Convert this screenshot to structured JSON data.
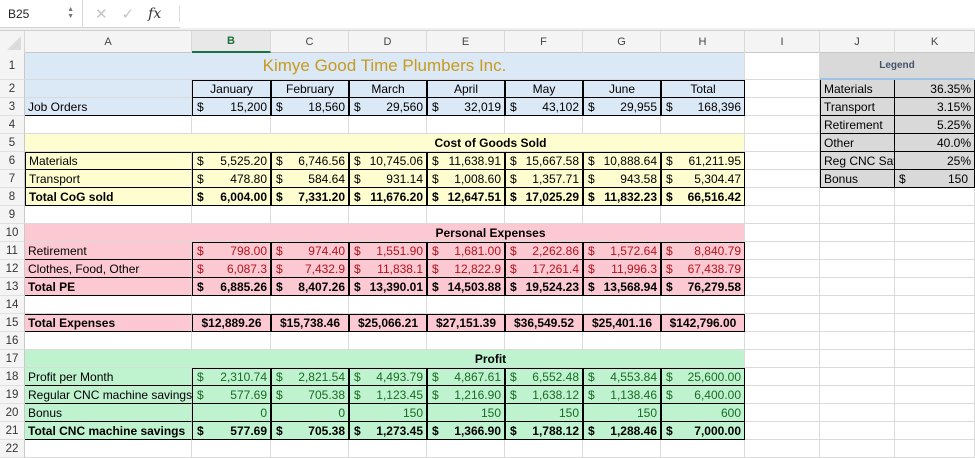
{
  "formula_bar": {
    "name_box": "B25",
    "cancel_icon": "✕",
    "enter_icon": "✓",
    "fx_label": "fx",
    "formula": ""
  },
  "columns": [
    "A",
    "B",
    "C",
    "D",
    "E",
    "F",
    "G",
    "H",
    "I",
    "J",
    "K"
  ],
  "selected_column": "B",
  "rows": [
    "1",
    "2",
    "3",
    "4",
    "5",
    "6",
    "7",
    "8",
    "9",
    "10",
    "11",
    "12",
    "13",
    "14",
    "15",
    "16",
    "17",
    "18",
    "19",
    "20",
    "21",
    "22"
  ],
  "title": "Kimye Good Time Plumbers Inc.",
  "months": [
    "January",
    "February",
    "March",
    "April",
    "May",
    "June",
    "Total"
  ],
  "job_orders": {
    "label": "Job Orders",
    "values": [
      "15,200",
      "18,560",
      "29,560",
      "32,019",
      "43,102",
      "29,955",
      "168,396"
    ]
  },
  "cogs": {
    "header": "Cost of Goods Sold",
    "rows": [
      {
        "label": "Materials",
        "bold": false,
        "values": [
          "5,525.20",
          "6,746.56",
          "10,745.06",
          "11,638.91",
          "15,667.58",
          "10,888.64",
          "61,211.95"
        ]
      },
      {
        "label": "Transport",
        "bold": false,
        "values": [
          "478.80",
          "584.64",
          "931.14",
          "1,008.60",
          "1,357.71",
          "943.58",
          "5,304.47"
        ]
      },
      {
        "label": "Total CoG sold",
        "bold": true,
        "values": [
          "6,004.00",
          "7,331.20",
          "11,676.20",
          "12,647.51",
          "17,025.29",
          "11,832.23",
          "66,516.42"
        ]
      }
    ]
  },
  "personal": {
    "header": "Personal Expenses",
    "rows": [
      {
        "label": "Retirement",
        "bold": false,
        "values": [
          "798.00",
          "974.40",
          "1,551.90",
          "1,681.00",
          "2,262.86",
          "1,572.64",
          "8,840.79"
        ]
      },
      {
        "label": "Clothes, Food, Other",
        "bold": false,
        "values": [
          "6,087.3",
          "7,432.9",
          "11,838.1",
          "12,822.9",
          "17,261.4",
          "11,996.3",
          "67,438.79"
        ]
      },
      {
        "label": "Total PE",
        "bold": true,
        "values": [
          "6,885.26",
          "8,407.26",
          "13,390.01",
          "14,503.88",
          "19,524.23",
          "13,568.94",
          "76,279.58"
        ]
      }
    ]
  },
  "total_expenses": {
    "label": "Total Expenses",
    "values": [
      "$12,889.26",
      "$15,738.46",
      "$25,066.21",
      "$27,151.39",
      "$36,549.52",
      "$25,401.16",
      "$142,796.00"
    ]
  },
  "profit": {
    "header": "Profit",
    "rows": [
      {
        "label": "Profit per Month",
        "values": [
          "2,310.74",
          "2,821.54",
          "4,493.79",
          "4,867.61",
          "6,552.48",
          "4,553.84",
          "25,600.00"
        ]
      },
      {
        "label": "Regular CNC machine savings",
        "values": [
          "577.69",
          "705.38",
          "1,123.45",
          "1,216.90",
          "1,638.12",
          "1,138.46",
          "6,400.00"
        ]
      },
      {
        "label": "Bonus",
        "values": [
          "0",
          "0",
          "150",
          "150",
          "150",
          "150",
          "600"
        ]
      },
      {
        "label": "Total CNC machine savings",
        "values": [
          "577.69",
          "705.38",
          "1,273.45",
          "1,366.90",
          "1,788.12",
          "1,288.46",
          "7,000.00"
        ]
      }
    ]
  },
  "legend": {
    "title": "Legend",
    "items": [
      {
        "label": "Materials",
        "value": "36.35%"
      },
      {
        "label": "Transport",
        "value": "3.15%"
      },
      {
        "label": "Retirement",
        "value": "5.25%"
      },
      {
        "label": "Other",
        "value": "40.0%"
      },
      {
        "label": "Reg CNC Savi",
        "value": "25%"
      },
      {
        "label": "Bonus",
        "currency": "$",
        "value": "150"
      }
    ]
  },
  "currency_symbol": "$",
  "colors": {
    "title": "#c89a1f",
    "header_blue": "#dbe8f5",
    "cogs_yellow": "#fefdcf",
    "personal_pink": "#fcc8d2",
    "profit_green": "#bff2cf",
    "legend_gray": "#d9d9d9",
    "red_text": "#b3141b",
    "green_text": "#196b24",
    "selected_col": "#1e7145"
  }
}
